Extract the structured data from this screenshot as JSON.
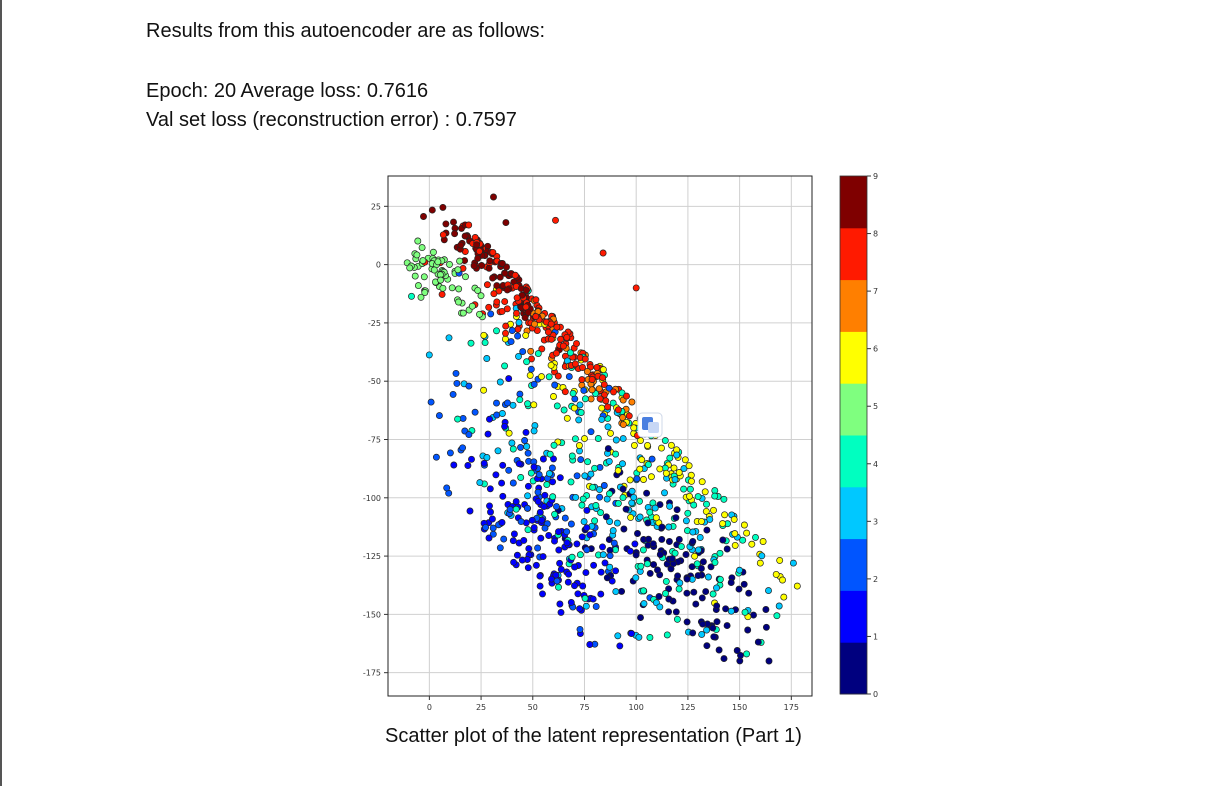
{
  "document": {
    "intro": "Results from this autoencoder are as follows:",
    "epoch_line": "Epoch: 20 Average loss: 0.7616",
    "val_line": "Val set loss (reconstruction error) : 0.7597",
    "caption": "Scatter plot of the latent representation (Part 1)"
  },
  "chart_data": {
    "type": "scatter",
    "title": "",
    "xlabel": "",
    "ylabel": "",
    "xlim": [
      -20,
      185
    ],
    "ylim": [
      -185,
      38
    ],
    "xticks": [
      0,
      25,
      50,
      75,
      100,
      125,
      150,
      175
    ],
    "yticks": [
      25,
      0,
      -25,
      -50,
      -75,
      -100,
      -125,
      -150,
      -175
    ],
    "grid": true,
    "colormap": "jet",
    "colorbar": {
      "range": [
        0,
        9
      ],
      "ticks": [
        0,
        1,
        2,
        3,
        4,
        5,
        6,
        7,
        8,
        9
      ],
      "bins": [
        "#00007f",
        "#0000ff",
        "#0055ff",
        "#00c8ff",
        "#00ffc0",
        "#7fff7f",
        "#ffff00",
        "#ff7f00",
        "#ff1a00",
        "#7f0000"
      ]
    },
    "marker_edge_color": "#222222",
    "clusters": [
      {
        "label": 9,
        "center": [
          30,
          5
        ],
        "spread": [
          14,
          5
        ],
        "n": 90
      },
      {
        "label": 8,
        "center": [
          55,
          -18
        ],
        "spread": [
          22,
          12
        ],
        "n": 150
      },
      {
        "label": 7,
        "center": [
          75,
          -40
        ],
        "spread": [
          18,
          12
        ],
        "n": 40
      },
      {
        "label": 6,
        "center": [
          105,
          -75
        ],
        "spread": [
          40,
          25
        ],
        "n": 120
      },
      {
        "label": 5,
        "center": [
          5,
          -5
        ],
        "spread": [
          9,
          6
        ],
        "n": 70
      },
      {
        "label": 4,
        "center": [
          95,
          -95
        ],
        "spread": [
          40,
          28
        ],
        "n": 150
      },
      {
        "label": 3,
        "center": [
          100,
          -110
        ],
        "spread": [
          38,
          28
        ],
        "n": 130
      },
      {
        "label": 2,
        "center": [
          55,
          -85
        ],
        "spread": [
          25,
          30
        ],
        "n": 100
      },
      {
        "label": 1,
        "center": [
          55,
          -120
        ],
        "spread": [
          18,
          22
        ],
        "n": 140
      },
      {
        "label": 0,
        "center": [
          120,
          -130
        ],
        "spread": [
          22,
          14
        ],
        "n": 130
      }
    ],
    "outliers": [
      {
        "x": 31,
        "y": 29,
        "label": 9
      },
      {
        "x": 37,
        "y": 18,
        "label": 9
      },
      {
        "x": 61,
        "y": 19,
        "label": 8
      },
      {
        "x": 19,
        "y": 17,
        "label": 8
      },
      {
        "x": 84,
        "y": 5,
        "label": 8
      },
      {
        "x": 100,
        "y": -10,
        "label": 8
      },
      {
        "x": 160,
        "y": -128,
        "label": 6
      },
      {
        "x": 154,
        "y": -151,
        "label": 6
      },
      {
        "x": 176,
        "y": -128,
        "label": 3
      }
    ]
  }
}
